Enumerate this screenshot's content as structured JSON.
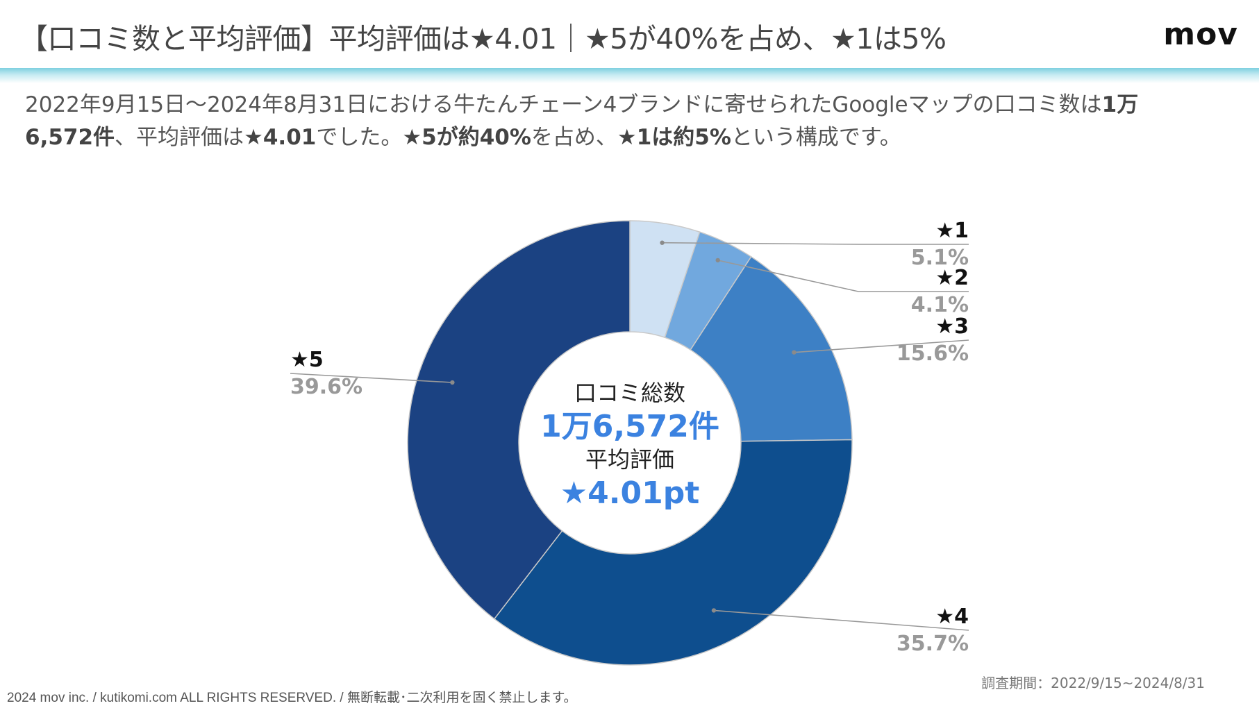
{
  "header": {
    "title": "【口コミ数と平均評価】平均評価は★4.01｜★5が40%を占め、★1は5%",
    "logo": "mov"
  },
  "lead": {
    "p1": "2022年9月15日〜2024年8月31日における牛たんチェーン4ブランドに寄せられたGoogleマップの口コミ数は",
    "b1": "1万6,572件",
    "p2": "、平均評価は",
    "b2": "★4.01",
    "p3": "でした。",
    "b3": "★5が約40%",
    "p4": "を占め、",
    "b4": "★1は約5%",
    "p5": "という構成です。"
  },
  "center": {
    "label1": "口コミ総数",
    "value1": "1万6,572件",
    "label2": "平均評価",
    "value2": "★4.01pt"
  },
  "chart_data": {
    "type": "pie",
    "style": "donut",
    "categories": [
      "★1",
      "★2",
      "★3",
      "★4",
      "★5"
    ],
    "values": [
      5.1,
      4.1,
      15.6,
      35.7,
      39.6
    ],
    "value_labels": [
      "5.1%",
      "4.1%",
      "15.6%",
      "35.7%",
      "39.6%"
    ],
    "colors": [
      "#cfe1f3",
      "#71a8de",
      "#3d80c5",
      "#0e4e8e",
      "#1b4282"
    ],
    "label_color": "#111111",
    "pct_color": "#999999",
    "accent_color": "#3b82e0"
  },
  "footer": {
    "copyright": "2024 mov inc. / kutikomi.com ALL RIGHTS RESERVED. / 無断転載･二次利用を固く禁止します。",
    "period": "調査期間：2022/9/15~2024/8/31"
  }
}
